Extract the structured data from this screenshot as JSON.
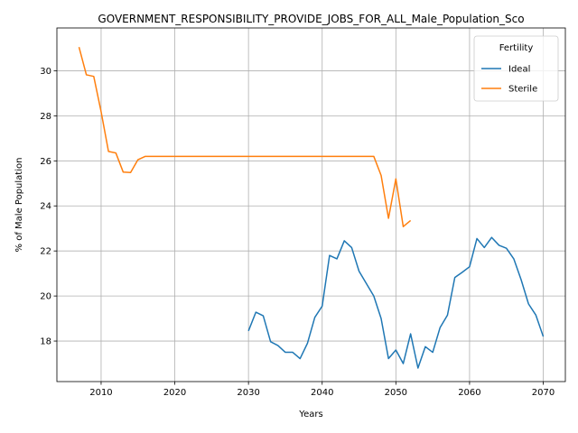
{
  "chart_data": {
    "type": "line",
    "title": "GOVERNMENT_RESPONSIBILITY_PROVIDE_JOBS_FOR_ALL_Male_Population_Sco",
    "xlabel": "Years",
    "ylabel": "% of Male Population",
    "xlim": [
      2004,
      2073
    ],
    "ylim": [
      16.2,
      31.9
    ],
    "xticks": [
      2010,
      2020,
      2030,
      2040,
      2050,
      2060,
      2070
    ],
    "yticks": [
      18,
      20,
      22,
      24,
      26,
      28,
      30
    ],
    "grid": true,
    "legend": {
      "title": "Fertility",
      "placement": "top-right"
    },
    "series": [
      {
        "name": "Ideal",
        "color": "#1f77b4",
        "x": [
          2030,
          2031,
          2032,
          2033,
          2034,
          2035,
          2036,
          2037,
          2038,
          2039,
          2040,
          2041,
          2042,
          2043,
          2044,
          2045,
          2046,
          2047,
          2048,
          2049,
          2050,
          2051,
          2052,
          2053,
          2054,
          2055,
          2056,
          2057,
          2058,
          2059,
          2060,
          2061,
          2062,
          2063,
          2064,
          2065,
          2066,
          2067,
          2068,
          2069,
          2070
        ],
        "y": [
          18.45,
          19.28,
          19.12,
          17.97,
          17.8,
          17.5,
          17.5,
          17.22,
          17.9,
          19.05,
          19.55,
          21.8,
          21.65,
          22.45,
          22.15,
          21.1,
          20.55,
          20.0,
          19.0,
          17.22,
          17.6,
          17.0,
          18.32,
          16.8,
          17.75,
          17.5,
          18.6,
          19.15,
          20.82,
          21.05,
          21.3,
          22.55,
          22.15,
          22.6,
          22.25,
          22.12,
          21.65,
          20.72,
          19.65,
          19.15,
          18.2
        ]
      },
      {
        "name": "Sterile",
        "color": "#ff7f0e",
        "x": [
          2007,
          2008,
          2009,
          2010,
          2011,
          2012,
          2013,
          2014,
          2015,
          2016,
          2017,
          2018,
          2019,
          2020,
          2021,
          2022,
          2023,
          2024,
          2025,
          2026,
          2027,
          2028,
          2029,
          2030,
          2031,
          2032,
          2033,
          2034,
          2035,
          2036,
          2037,
          2038,
          2039,
          2040,
          2041,
          2042,
          2043,
          2044,
          2045,
          2046,
          2047,
          2048,
          2049,
          2050,
          2051,
          2052
        ],
        "y": [
          31.05,
          29.82,
          29.75,
          28.18,
          26.42,
          26.35,
          25.5,
          25.48,
          26.05,
          26.2,
          26.2,
          26.2,
          26.2,
          26.2,
          26.2,
          26.2,
          26.2,
          26.2,
          26.2,
          26.2,
          26.2,
          26.2,
          26.2,
          26.2,
          26.2,
          26.2,
          26.2,
          26.2,
          26.2,
          26.2,
          26.2,
          26.2,
          26.2,
          26.2,
          26.2,
          26.2,
          26.2,
          26.2,
          26.2,
          26.2,
          26.2,
          25.35,
          23.45,
          25.2,
          23.08,
          23.35
        ]
      }
    ]
  }
}
